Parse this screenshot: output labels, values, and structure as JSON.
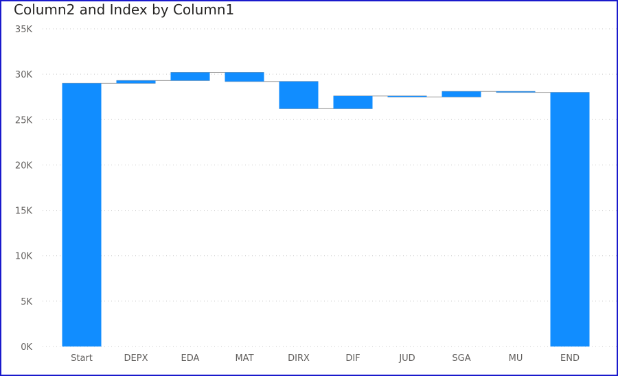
{
  "header": {
    "title": "Column2 and Index by Column1"
  },
  "colors": {
    "bar": "#118DFF",
    "connector": "#9a9a9a",
    "grid": "#c8c8c8",
    "text": "#605E5C",
    "frame": "#1a1acc"
  },
  "chart_data": {
    "type": "bar",
    "subtype": "waterfall",
    "title": "Column2 and Index by Column1",
    "xlabel": "",
    "ylabel": "",
    "ylim": [
      0,
      35000
    ],
    "yticks": [
      0,
      5000,
      10000,
      15000,
      20000,
      25000,
      30000,
      35000
    ],
    "ytick_labels": [
      "0K",
      "5K",
      "10K",
      "15K",
      "20K",
      "25K",
      "30K",
      "35K"
    ],
    "grid": true,
    "categories": [
      "Start",
      "DEPX",
      "EDA",
      "MAT",
      "DIRX",
      "DIF",
      "JUD",
      "SGA",
      "MU",
      "END"
    ],
    "start": [
      0,
      29000,
      29300,
      30200,
      29200,
      26200,
      27600,
      27500,
      28100,
      0
    ],
    "end": [
      29000,
      29300,
      30200,
      29200,
      26200,
      27600,
      27500,
      28100,
      28000,
      28000
    ]
  }
}
